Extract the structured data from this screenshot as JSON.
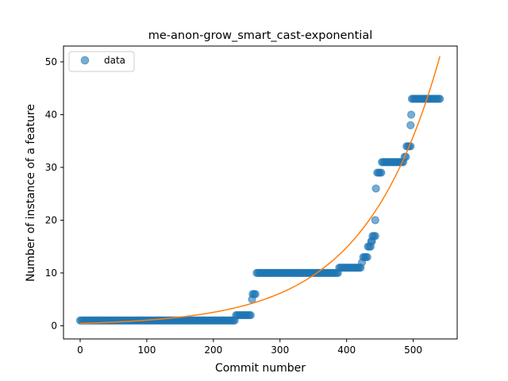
{
  "chart_data": {
    "type": "scatter",
    "title": "me-anon-grow_smart_cast-exponential",
    "xlabel": "Commit number",
    "ylabel": "Number of instance of a feature",
    "xlim": [
      -25,
      566
    ],
    "ylim": [
      -2.5,
      53
    ],
    "x_ticks": [
      0,
      100,
      200,
      300,
      400,
      500
    ],
    "y_ticks": [
      0,
      10,
      20,
      30,
      40,
      50
    ],
    "legend": {
      "placement": "top-left",
      "entries": [
        {
          "label": "data",
          "marker": "circle"
        }
      ]
    },
    "grid": false,
    "colors": {
      "data": "#1f77b4",
      "fit": "#ff7f0e"
    },
    "series": [
      {
        "name": "data",
        "kind": "scatter",
        "segments": [
          {
            "x_start": 0,
            "x_end": 232,
            "step": 2,
            "y": 1
          },
          {
            "x_start": 234,
            "x_end": 257,
            "step": 2,
            "y": 2
          },
          {
            "x_start": 258,
            "x_end": 258,
            "step": 1,
            "y": 5
          },
          {
            "x_start": 259,
            "x_end": 263,
            "step": 2,
            "y": 6
          },
          {
            "x_start": 265,
            "x_end": 387,
            "step": 2,
            "y": 10
          },
          {
            "x_start": 389,
            "x_end": 421,
            "step": 2,
            "y": 11
          },
          {
            "x_start": 423,
            "x_end": 423,
            "step": 1,
            "y": 12
          },
          {
            "x_start": 425,
            "x_end": 431,
            "step": 2,
            "y": 13
          },
          {
            "x_start": 432,
            "x_end": 436,
            "step": 2,
            "y": 15
          },
          {
            "x_start": 437,
            "x_end": 438,
            "step": 1,
            "y": 16
          },
          {
            "x_start": 439,
            "x_end": 443,
            "step": 2,
            "y": 17
          },
          {
            "x_start": 443,
            "x_end": 443,
            "step": 1,
            "y": 20
          },
          {
            "x_start": 444,
            "x_end": 444,
            "step": 1,
            "y": 26
          },
          {
            "x_start": 446,
            "x_end": 452,
            "step": 2,
            "y": 29
          },
          {
            "x_start": 453,
            "x_end": 486,
            "step": 2,
            "y": 31
          },
          {
            "x_start": 487,
            "x_end": 489,
            "step": 2,
            "y": 32
          },
          {
            "x_start": 490,
            "x_end": 496,
            "step": 2,
            "y": 34
          },
          {
            "x_start": 496,
            "x_end": 496,
            "step": 1,
            "y": 38
          },
          {
            "x_start": 497,
            "x_end": 497,
            "step": 1,
            "y": 40
          },
          {
            "x_start": 498,
            "x_end": 540,
            "step": 2,
            "y": 43
          }
        ]
      },
      {
        "name": "",
        "kind": "line",
        "function": "a*exp(b*x)",
        "a": 0.436,
        "b": 0.00882,
        "x_range": [
          0,
          540
        ]
      }
    ]
  }
}
